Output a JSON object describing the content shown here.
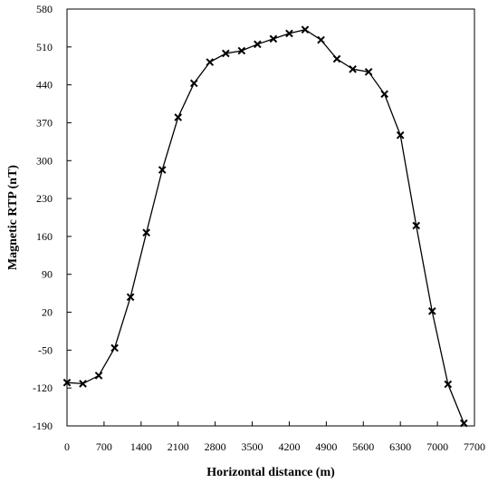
{
  "chart_data": {
    "type": "line",
    "xlabel": "Horizontal distance (m)",
    "ylabel": "Magnetic RTP (nT)",
    "xlim": [
      0,
      7700
    ],
    "ylim": [
      -190,
      580
    ],
    "xticks": [
      0,
      700,
      1400,
      2100,
      2800,
      3500,
      4200,
      4900,
      5600,
      6300,
      7000,
      7700
    ],
    "yticks": [
      -190,
      -120,
      -50,
      20,
      90,
      160,
      230,
      300,
      370,
      440,
      510,
      580
    ],
    "marker": "x",
    "color": "#000000",
    "grid": false,
    "series": [
      {
        "x": [
          0,
          300,
          600,
          900,
          1200,
          1500,
          1800,
          2100,
          2400,
          2700,
          3000,
          3300,
          3600,
          3900,
          4200,
          4500,
          4800,
          5100,
          5400,
          5700,
          6000,
          6300,
          6600,
          6900,
          7200,
          7500
        ],
        "values": [
          -110,
          -112,
          -97,
          -46,
          48,
          167,
          283,
          380,
          443,
          482,
          498,
          503,
          515,
          525,
          535,
          542,
          523,
          488,
          469,
          464,
          423,
          347,
          180,
          22,
          -113,
          -185
        ]
      }
    ]
  }
}
